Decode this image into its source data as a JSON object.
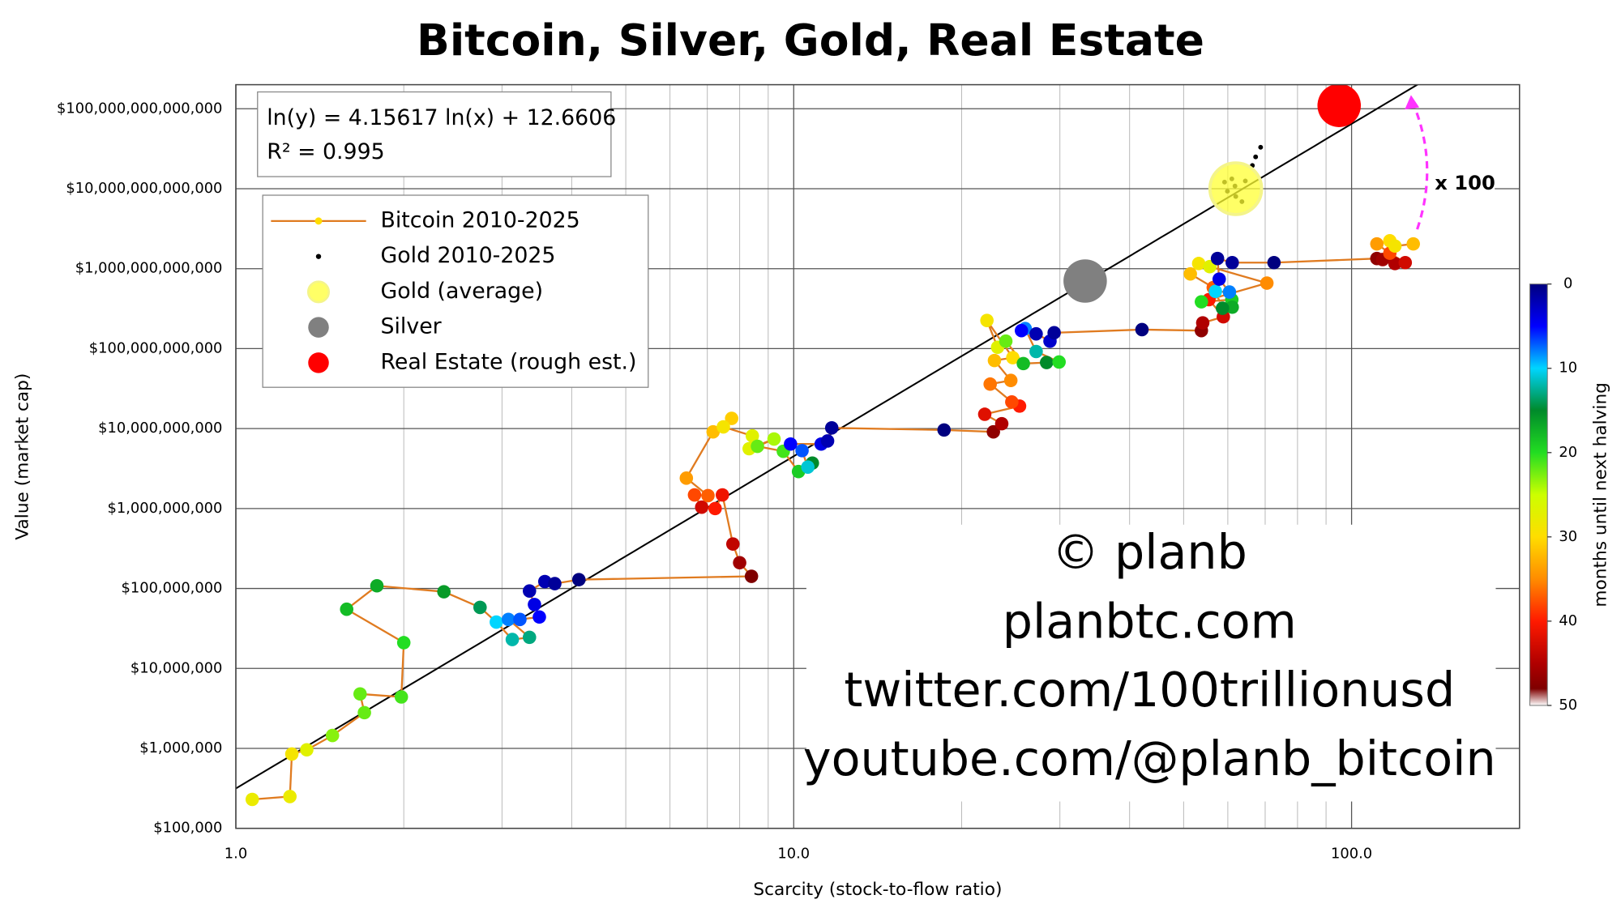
{
  "chart_data": {
    "type": "scatter",
    "title": "Bitcoin, Silver, Gold, Real Estate",
    "xlabel": "Scarcity (stock-to-flow ratio)",
    "ylabel": "Value (market cap)",
    "log_x": true,
    "log_y": true,
    "grid": true,
    "legend": "upper left",
    "xlim": [
      1,
      200
    ],
    "ylim": [
      100000,
      200000000000000
    ],
    "xticks": [
      {
        "value": 1,
        "label": "1.0"
      },
      {
        "value": 10,
        "label": "10.0"
      },
      {
        "value": 100,
        "label": "100.0"
      }
    ],
    "xminorticks": [
      2,
      3,
      4,
      5,
      6,
      7,
      8,
      9,
      20,
      30,
      40,
      50,
      60,
      70,
      80,
      90
    ],
    "yticks": [
      {
        "value": 100000,
        "label": "$100,000"
      },
      {
        "value": 1000000,
        "label": "$1,000,000"
      },
      {
        "value": 10000000,
        "label": "$10,000,000"
      },
      {
        "value": 100000000,
        "label": "$100,000,000"
      },
      {
        "value": 1000000000,
        "label": "$1,000,000,000"
      },
      {
        "value": 10000000000,
        "label": "$10,000,000,000"
      },
      {
        "value": 100000000000,
        "label": "$100,000,000,000"
      },
      {
        "value": 1000000000000,
        "label": "$1,000,000,000,000"
      },
      {
        "value": 10000000000000,
        "label": "$10,000,000,000,000"
      },
      {
        "value": 100000000000000,
        "label": "$100,000,000,000,000"
      }
    ],
    "series": [
      {
        "name": "Bitcoin 2010-2025",
        "mode": "lines+markers",
        "color": "#e07b20",
        "x": [
          1.07,
          1.25,
          1.26,
          1.34,
          1.49,
          1.7,
          1.67,
          1.98,
          2.0,
          1.58,
          1.79,
          2.36,
          2.74,
          2.93,
          3.13,
          3.36,
          3.08,
          3.23,
          3.5,
          3.43,
          3.36,
          3.58,
          3.73,
          4.12,
          8.4,
          8.0,
          7.78,
          7.45,
          7.23,
          6.84,
          6.64,
          7.02,
          6.42,
          7.17,
          7.74,
          7.48,
          8.43,
          8.32,
          9.22,
          8.61,
          9.58,
          10.2,
          10.8,
          10.6,
          10.35,
          9.87,
          11.2,
          11.5,
          11.7,
          18.6,
          22.8,
          23.6,
          22.0,
          25.4,
          24.6,
          22.5,
          24.5,
          22.9,
          24.7,
          22.2,
          23.2,
          24.0,
          25.8,
          28.4,
          29.9,
          27.2,
          26.0,
          25.6,
          27.2,
          28.8,
          29.3,
          42.1,
          53.8,
          54.1,
          58.9,
          55.5,
          56.5,
          51.4,
          53.2,
          55.7,
          70.5,
          53.8,
          61.0,
          61.1,
          58.7,
          57.0,
          60.4,
          57.9,
          57.5,
          61.1,
          72.6,
          111,
          113.7,
          119.6,
          124.8,
          117.1,
          111,
          117.1,
          119.6,
          129
        ],
        "values": [
          230000.0,
          250000.0,
          850000.0,
          960000.0,
          1450000.0,
          2800000.0,
          4800000.0,
          4400000.0,
          21000000.0,
          55000000.0,
          108000000.0,
          91000000.0,
          58000000.0,
          38000000.0,
          23000000.0,
          24500000.0,
          41000000.0,
          41000000.0,
          44000000.0,
          63000000.0,
          93000000.0,
          122000000.0,
          115000000.0,
          129000000.0,
          142000000.0,
          210000000.0,
          360000000.0,
          1480000000.0,
          1000000000.0,
          1040000000.0,
          1480000000.0,
          1450000000.0,
          2400000000.0,
          9100000000.0,
          13400000000.0,
          10500000000.0,
          8100000000.0,
          5600000000.0,
          7400000000.0,
          6000000000.0,
          5200000000.0,
          2900000000.0,
          3700000000.0,
          3300000000.0,
          5300000000.0,
          6400000000.0,
          6400000000.0,
          7000000000.0,
          10200000000.0,
          9600000000.0,
          9100000000.0,
          11500000000.0,
          15100000000.0,
          19100000000.0,
          21500000000.0,
          36000000000.0,
          40000000000.0,
          71000000000.0,
          77000000000.0,
          225000000000.0,
          104000000000.0,
          124000000000.0,
          65000000000.0,
          67000000000.0,
          68000000000.0,
          92000000000.0,
          178000000000.0,
          168000000000.0,
          153000000000.0,
          124000000000.0,
          158000000000.0,
          173000000000.0,
          168000000000.0,
          210000000000.0,
          250000000000.0,
          410000000000.0,
          580000000000.0,
          860000000000.0,
          1160000000000.0,
          1060000000000.0,
          660000000000.0,
          385000000000.0,
          410000000000.0,
          330000000000.0,
          320000000000.0,
          520000000000.0,
          510000000000.0,
          740000000000.0,
          1340000000000.0,
          1190000000000.0,
          1190000000000.0,
          1340000000000.0,
          1300000000000.0,
          1160000000000.0,
          1190000000000.0,
          1560000000000.0,
          2040000000000.0,
          2230000000000.0,
          1920000000000.0,
          2040000000000.0
        ],
        "months": [
          28,
          28,
          29,
          27,
          23,
          22,
          22,
          21,
          20,
          18,
          17,
          16,
          14,
          10,
          12,
          13,
          8,
          7,
          5,
          4,
          2,
          2,
          1,
          0,
          48,
          46,
          44,
          41,
          40,
          43,
          38,
          37,
          34,
          32,
          31,
          29,
          27,
          27,
          24,
          22,
          21,
          19,
          15,
          11,
          7,
          5,
          4,
          2,
          1,
          0,
          47,
          45,
          42,
          40,
          38,
          36,
          35,
          32,
          30,
          29,
          27,
          22,
          18,
          15,
          20,
          12,
          8,
          5,
          2,
          3,
          1,
          0,
          47,
          45,
          43,
          40,
          37,
          32,
          29,
          27,
          35,
          20,
          19,
          17,
          15,
          10,
          8,
          4,
          1,
          1,
          0,
          47,
          46,
          45,
          43,
          38,
          34,
          30,
          29,
          32
        ]
      },
      {
        "name": "Gold 2010-2025",
        "mode": "markers",
        "color": "#000000",
        "x": [
          68.7,
          67.3,
          66.4,
          64.5,
          61.8,
          59.9,
          62.0,
          63.6,
          59.2,
          61.0
        ],
        "values": [
          33000000000000.0,
          25000000000000.0,
          19500000000000.0,
          12500000000000.0,
          10800000000000.0,
          9300000000000.0,
          8000000000000.0,
          6900000000000.0,
          12100000000000.0,
          13300000000000.0
        ]
      },
      {
        "name": "Gold (average)",
        "mode": "bubble",
        "color": "#ffff33",
        "x": [
          62
        ],
        "values": [
          10000000000000.0
        ]
      },
      {
        "name": "Silver",
        "mode": "bubble",
        "color": "#808080",
        "x": [
          33.3
        ],
        "values": [
          700000000000.0
        ]
      },
      {
        "name": "Real Estate (rough est.)",
        "mode": "bubble",
        "color": "#ff0000",
        "x": [
          95
        ],
        "values": [
          110000000000000.0
        ]
      }
    ],
    "fit": {
      "slope": 4.15617,
      "intercept": 12.6606,
      "equation": "ln(y) = 4.15617 ln(x) + 12.6606",
      "r2": "R² = 0.995",
      "color": "#000000"
    },
    "annotation": {
      "text": "x 100",
      "color": "#ff33ff"
    },
    "watermark": [
      "© planb",
      "planbtc.com",
      "twitter.com/100trillionusd",
      "youtube.com/@planb_bitcoin"
    ],
    "colorbar": {
      "label": "months until next halving",
      "lim": [
        0,
        50
      ],
      "ticks": [
        0,
        10,
        20,
        30,
        40,
        50
      ],
      "colorscale": [
        [
          0,
          "#00007f"
        ],
        [
          5,
          "#0000ff"
        ],
        [
          10,
          "#00d5ff"
        ],
        [
          15,
          "#008a2a"
        ],
        [
          20,
          "#22dd22"
        ],
        [
          25,
          "#ccff00"
        ],
        [
          30,
          "#ffdd00"
        ],
        [
          35,
          "#ff8c00"
        ],
        [
          40,
          "#ff1a00"
        ],
        [
          45,
          "#b00000"
        ],
        [
          48,
          "#7f0000"
        ],
        [
          50,
          "#ffffff"
        ]
      ]
    }
  }
}
